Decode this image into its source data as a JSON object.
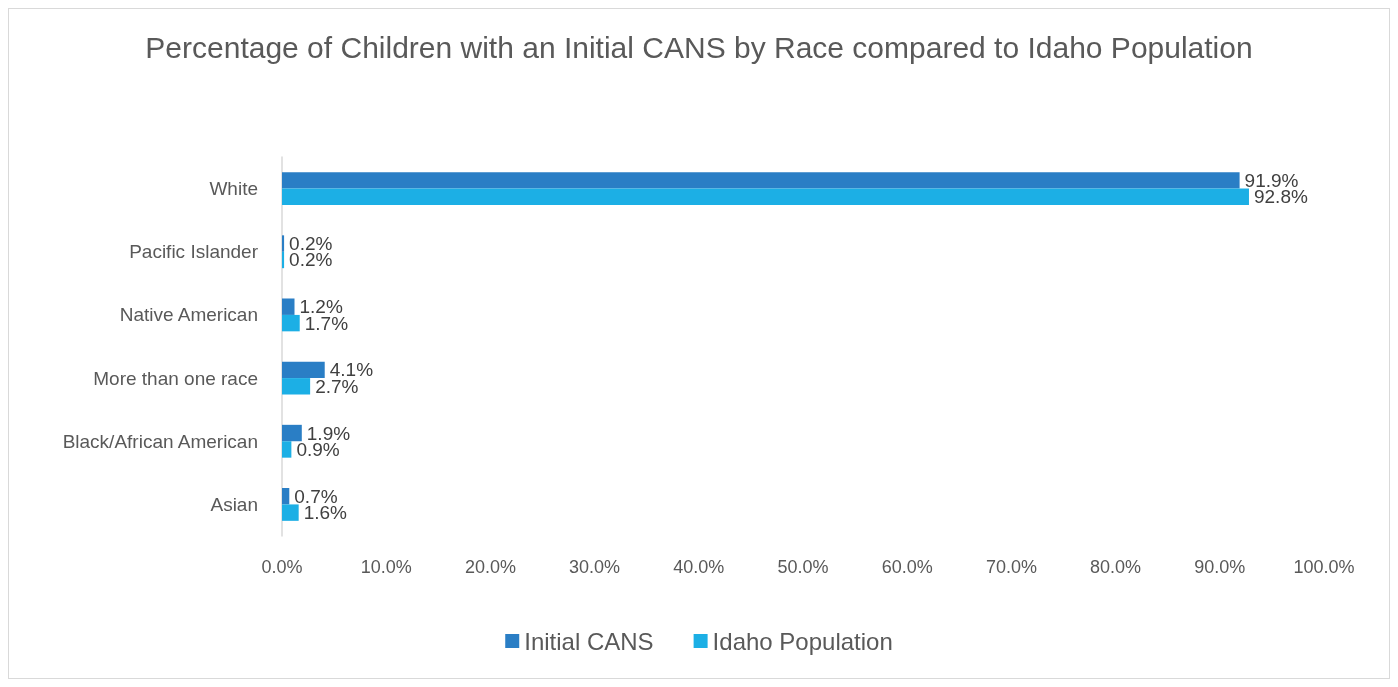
{
  "chart_data": {
    "type": "bar",
    "orientation": "horizontal",
    "title": "Percentage of Children with an Initial CANS by Race compared to Idaho Population",
    "categories": [
      "White",
      "Pacific Islander",
      "Native American",
      "More than one race",
      "Black/African American",
      "Asian"
    ],
    "series": [
      {
        "name": "Initial CANS",
        "color": "#2a7ec5",
        "values": [
          91.9,
          0.2,
          1.2,
          4.1,
          1.9,
          0.7
        ],
        "value_labels": [
          "91.9%",
          "0.2%",
          "1.2%",
          "4.1%",
          "1.9%",
          "0.7%"
        ]
      },
      {
        "name": "Idaho Population",
        "color": "#1cafe5",
        "values": [
          92.8,
          0.2,
          1.7,
          2.7,
          0.9,
          1.6
        ],
        "value_labels": [
          "92.8%",
          "0.2%",
          "1.7%",
          "2.7%",
          "0.9%",
          "1.6%"
        ]
      }
    ],
    "xlim": [
      0,
      100
    ],
    "xticks": [
      {
        "value": 0,
        "label": "0.0%"
      },
      {
        "value": 10,
        "label": "10.0%"
      },
      {
        "value": 20,
        "label": "20.0%"
      },
      {
        "value": 30,
        "label": "30.0%"
      },
      {
        "value": 40,
        "label": "40.0%"
      },
      {
        "value": 50,
        "label": "50.0%"
      },
      {
        "value": 60,
        "label": "60.0%"
      },
      {
        "value": 70,
        "label": "70.0%"
      },
      {
        "value": 80,
        "label": "80.0%"
      },
      {
        "value": 90,
        "label": "90.0%"
      },
      {
        "value": 100,
        "label": "100.0%"
      }
    ],
    "grid": false,
    "legend": "bottom"
  }
}
